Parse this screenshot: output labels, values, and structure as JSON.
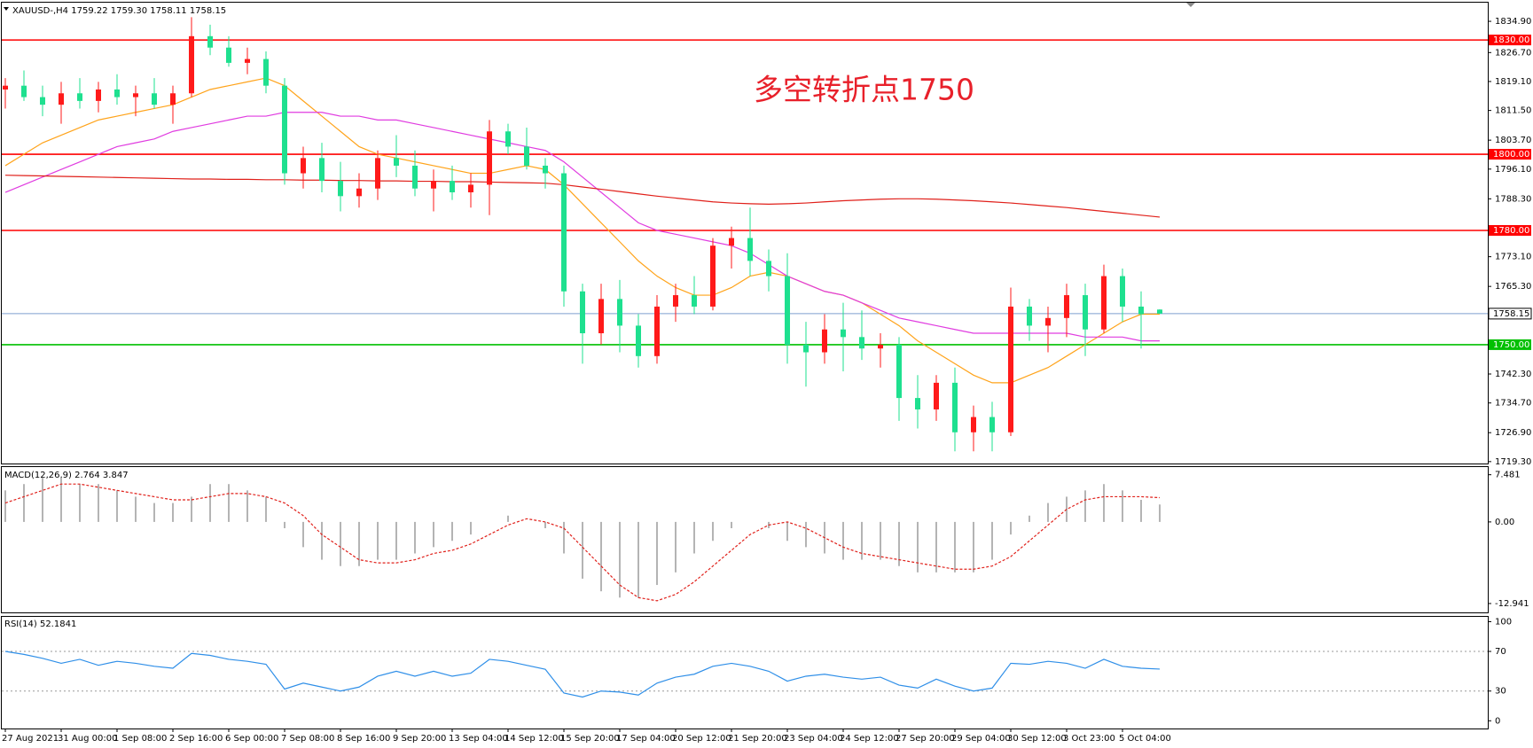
{
  "chart_data": [
    {
      "type": "candlestick",
      "title": "XAUUSD-,H4  1759.22 1759.30 1758.11 1758.15",
      "annotation": "多空转折点1750",
      "categories": [
        "27 Aug 2021",
        null,
        null,
        "31 Aug 00:00",
        null,
        null,
        "1 Sep 08:00",
        null,
        null,
        "2 Sep 16:00",
        null,
        null,
        "6 Sep 00:00",
        null,
        null,
        "7 Sep 08:00",
        null,
        null,
        "8 Sep 16:00",
        null,
        null,
        "9 Sep 20:00",
        null,
        null,
        "13 Sep 04:00",
        null,
        null,
        "14 Sep 12:00",
        null,
        null,
        "15 Sep 20:00",
        null,
        null,
        "17 Sep 04:00",
        null,
        null,
        "20 Sep 12:00",
        null,
        null,
        "21 Sep 20:00",
        null,
        null,
        "23 Sep 04:00",
        null,
        null,
        "24 Sep 12:00",
        null,
        null,
        "27 Sep 20:00",
        null,
        null,
        "29 Sep 04:00",
        null,
        null,
        "30 Sep 12:00",
        null,
        null,
        "3 Oct 23:00",
        null,
        null,
        "5 Oct 04:00",
        null,
        null
      ],
      "ohlc": [
        [
          1817,
          1820,
          1812,
          1818
        ],
        [
          1818,
          1822,
          1814,
          1815
        ],
        [
          1815,
          1818,
          1810,
          1813
        ],
        [
          1813,
          1819,
          1808,
          1816
        ],
        [
          1816,
          1820,
          1812,
          1814
        ],
        [
          1814,
          1819,
          1811,
          1817
        ],
        [
          1817,
          1821,
          1813,
          1815
        ],
        [
          1815,
          1818,
          1810,
          1816
        ],
        [
          1816,
          1820,
          1812,
          1813
        ],
        [
          1813,
          1818,
          1808,
          1816
        ],
        [
          1816,
          1836,
          1815,
          1831
        ],
        [
          1831,
          1834,
          1826,
          1828
        ],
        [
          1828,
          1831,
          1823,
          1824
        ],
        [
          1824,
          1828,
          1821,
          1825
        ],
        [
          1825,
          1827,
          1816,
          1818
        ],
        [
          1818,
          1820,
          1792,
          1795
        ],
        [
          1795,
          1802,
          1791,
          1799
        ],
        [
          1799,
          1803,
          1790,
          1793
        ],
        [
          1793,
          1798,
          1785,
          1789
        ],
        [
          1789,
          1795,
          1786,
          1791
        ],
        [
          1791,
          1801,
          1788,
          1799
        ],
        [
          1799,
          1805,
          1794,
          1797
        ],
        [
          1797,
          1801,
          1789,
          1791
        ],
        [
          1791,
          1796,
          1785,
          1793
        ],
        [
          1793,
          1797,
          1788,
          1790
        ],
        [
          1790,
          1795,
          1786,
          1792
        ],
        [
          1792,
          1809,
          1784,
          1806
        ],
        [
          1806,
          1808,
          1800,
          1802
        ],
        [
          1802,
          1807,
          1796,
          1797
        ],
        [
          1797,
          1799,
          1791,
          1795
        ],
        [
          1795,
          1797,
          1760,
          1764
        ],
        [
          1764,
          1766,
          1745,
          1753
        ],
        [
          1753,
          1766,
          1750,
          1762
        ],
        [
          1762,
          1767,
          1748,
          1755
        ],
        [
          1755,
          1758,
          1744,
          1747
        ],
        [
          1747,
          1763,
          1745,
          1760
        ],
        [
          1760,
          1766,
          1756,
          1763
        ],
        [
          1763,
          1768,
          1758,
          1760
        ],
        [
          1760,
          1778,
          1759,
          1776
        ],
        [
          1776,
          1781,
          1770,
          1778
        ],
        [
          1778,
          1786,
          1768,
          1772
        ],
        [
          1772,
          1775,
          1764,
          1768
        ],
        [
          1768,
          1774,
          1745,
          1750
        ],
        [
          1750,
          1756,
          1739,
          1748
        ],
        [
          1748,
          1758,
          1745,
          1754
        ],
        [
          1754,
          1761,
          1743,
          1752
        ],
        [
          1752,
          1759,
          1746,
          1749
        ],
        [
          1749,
          1753,
          1744,
          1750
        ],
        [
          1750,
          1752,
          1730,
          1736
        ],
        [
          1736,
          1742,
          1728,
          1733
        ],
        [
          1733,
          1742,
          1730,
          1740
        ],
        [
          1740,
          1744,
          1722,
          1727
        ],
        [
          1727,
          1734,
          1722,
          1731
        ],
        [
          1731,
          1735,
          1722,
          1727
        ],
        [
          1727,
          1765,
          1726,
          1760
        ],
        [
          1760,
          1762,
          1751,
          1755
        ],
        [
          1755,
          1760,
          1748,
          1757
        ],
        [
          1757,
          1766,
          1752,
          1763
        ],
        [
          1763,
          1766,
          1747,
          1754
        ],
        [
          1754,
          1771,
          1753,
          1768
        ],
        [
          1768,
          1770,
          1756,
          1760
        ],
        [
          1760,
          1764,
          1749,
          1758
        ],
        [
          1759.22,
          1759.3,
          1758.11,
          1758.15
        ]
      ],
      "up_color": "#ff1a1a",
      "down_color": "#1ee08f",
      "series": [
        {
          "color": "#ffa31a",
          "values": [
            1797,
            1800,
            1803,
            1805,
            1807,
            1809,
            1810,
            1811,
            1812,
            1813,
            1815,
            1817,
            1818,
            1819,
            1820,
            1818,
            1814,
            1810,
            1806,
            1802,
            1800,
            1799,
            1798,
            1797,
            1796,
            1795,
            1795,
            1796,
            1797,
            1796,
            1792,
            1787,
            1782,
            1777,
            1772,
            1768,
            1765,
            1763,
            1763,
            1765,
            1768,
            1769,
            1768,
            1766,
            1764,
            1763,
            1761,
            1758,
            1755,
            1751,
            1748,
            1745,
            1742,
            1740,
            1740,
            1742,
            1744,
            1747,
            1750,
            1753,
            1756,
            1758,
            1758
          ]
        },
        {
          "color": "#e03ce0",
          "values": [
            1790,
            1792,
            1794,
            1796,
            1798,
            1800,
            1802,
            1803,
            1804,
            1806,
            1807,
            1808,
            1809,
            1810,
            1810,
            1811,
            1811,
            1811,
            1810,
            1810,
            1809,
            1809,
            1808,
            1807,
            1806,
            1805,
            1804,
            1803,
            1802,
            1801,
            1798,
            1794,
            1790,
            1786,
            1782,
            1780,
            1779,
            1778,
            1777,
            1776,
            1774,
            1771,
            1768,
            1766,
            1764,
            1763,
            1761,
            1759,
            1757,
            1756,
            1755,
            1754,
            1753,
            1753,
            1753,
            1753,
            1753,
            1753,
            1752,
            1752,
            1752,
            1751,
            1751
          ]
        },
        {
          "color": "#e0201a",
          "values": [
            1794.5,
            1794.4,
            1794.3,
            1794.2,
            1794.1,
            1794,
            1793.9,
            1793.8,
            1793.7,
            1793.6,
            1793.5,
            1793.5,
            1793.4,
            1793.4,
            1793.3,
            1793.3,
            1793.2,
            1793.2,
            1793.1,
            1793.1,
            1793,
            1793,
            1792.9,
            1792.9,
            1792.8,
            1792.8,
            1792.7,
            1792.6,
            1792.5,
            1792.4,
            1792,
            1791.4,
            1790.8,
            1790.2,
            1789.6,
            1789,
            1788.5,
            1788,
            1787.5,
            1787.2,
            1787,
            1786.9,
            1787,
            1787.2,
            1787.5,
            1787.8,
            1788,
            1788.2,
            1788.3,
            1788.3,
            1788.2,
            1788,
            1787.8,
            1787.5,
            1787.2,
            1786.8,
            1786.4,
            1786,
            1785.5,
            1785,
            1784.5,
            1784,
            1783.5
          ]
        }
      ],
      "levels": [
        {
          "value": 1830,
          "label": "1830.00",
          "color": "#ff0000"
        },
        {
          "value": 1800,
          "label": "1800.00",
          "color": "#ff0000"
        },
        {
          "value": 1780,
          "label": "1780.00",
          "color": "#ff0000"
        },
        {
          "value": 1750,
          "label": "1750.00",
          "color": "#00c000"
        },
        {
          "value": 1758.15,
          "label": "1758.15",
          "color": "#7f9fcf"
        }
      ],
      "ylim": [
        1718.8,
        1839.8
      ],
      "yticks": [
        {
          "value": 1834.9,
          "label": "1834.90"
        },
        {
          "value": 1826.7,
          "label": "1826.70"
        },
        {
          "value": 1819.1,
          "label": "1819.10"
        },
        {
          "value": 1811.5,
          "label": "1811.50"
        },
        {
          "value": 1803.7,
          "label": "1803.70"
        },
        {
          "value": 1796.1,
          "label": "1796.10"
        },
        {
          "value": 1788.3,
          "label": "1788.30"
        },
        {
          "value": 1773.1,
          "label": "1773.10"
        },
        {
          "value": 1765.3,
          "label": "1765.30"
        },
        {
          "value": 1742.3,
          "label": "1742.30"
        },
        {
          "value": 1734.7,
          "label": "1734.70"
        },
        {
          "value": 1726.9,
          "label": "1726.90"
        },
        {
          "value": 1719.3,
          "label": "1719.30"
        }
      ]
    },
    {
      "type": "macd",
      "title": "MACD(12,26,9) 2.764 3.847",
      "values": [
        5,
        6,
        7,
        7,
        6,
        6,
        5,
        4,
        3,
        3,
        4,
        6,
        6,
        5,
        4,
        -1,
        -4,
        -6,
        -7,
        -7,
        -6,
        -6,
        -5,
        -4,
        -3,
        -2,
        0,
        1,
        0,
        -1,
        -5,
        -9,
        -11,
        -12,
        -12,
        -10,
        -8,
        -5,
        -3,
        -1,
        0,
        -1,
        -3,
        -4,
        -5,
        -6,
        -6,
        -6,
        -7,
        -8,
        -8,
        -8,
        -8,
        -6,
        -2,
        1,
        3,
        4,
        5,
        6,
        5,
        3.5,
        2.764
      ],
      "color": "#b4b4b4",
      "signal": [
        3,
        4,
        5,
        6,
        6,
        5.5,
        5,
        4.5,
        4,
        3.5,
        3.5,
        4,
        4.5,
        4.5,
        4,
        3,
        1,
        -2,
        -4,
        -6,
        -6.5,
        -6.5,
        -6,
        -5,
        -4.5,
        -3.5,
        -2,
        -0.5,
        0.5,
        0,
        -1,
        -4,
        -7,
        -10,
        -12,
        -12.5,
        -11.5,
        -9.5,
        -7,
        -4.5,
        -2,
        -0.5,
        0,
        -1,
        -2.5,
        -4,
        -5,
        -5.5,
        -6,
        -6.5,
        -7,
        -7.5,
        -7.5,
        -7,
        -5.5,
        -3,
        -0.5,
        2,
        3.5,
        4,
        4,
        4,
        3.847
      ],
      "signal_color": "#e0201a",
      "ylim": [
        -14.35,
        8.7
      ],
      "yticks": [
        7.481,
        {
          "value": 0,
          "label": "0.00"
        },
        -12.941
      ]
    },
    {
      "type": "line",
      "title": "RSI(14) 52.1841",
      "values": [
        70,
        67,
        63,
        58,
        62,
        56,
        60,
        58,
        55,
        53,
        68,
        66,
        62,
        60,
        57,
        32,
        38,
        34,
        30,
        34,
        45,
        50,
        45,
        50,
        45,
        48,
        62,
        60,
        56,
        52,
        28,
        24,
        30,
        29,
        26,
        38,
        44,
        47,
        55,
        58,
        55,
        50,
        40,
        45,
        47,
        44,
        42,
        44,
        36,
        33,
        42,
        35,
        30,
        33,
        58,
        57,
        60,
        58,
        53,
        62,
        55,
        53,
        52.1841
      ],
      "color": "#2f8fe8",
      "ylim": [
        -7.8,
        104.9
      ],
      "yticks": [
        100,
        70,
        30,
        0
      ],
      "levels": [
        70,
        30
      ]
    }
  ]
}
